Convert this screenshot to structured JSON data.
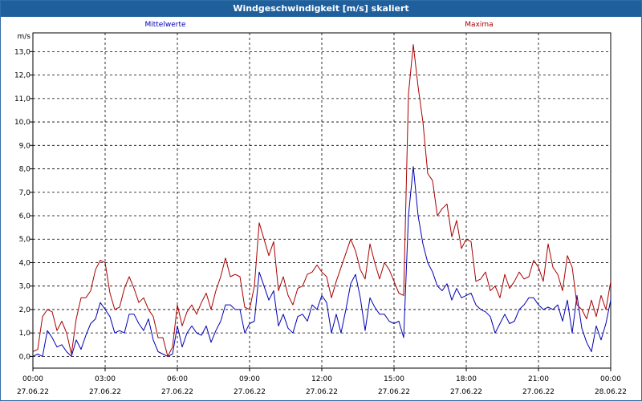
{
  "chart_data": {
    "type": "line",
    "title": "Windgeschwindigkeit [m/s] skaliert",
    "ylabel": "m/s",
    "ylim": [
      -0.5,
      13.8
    ],
    "yticks": [
      "0,0",
      "1,0",
      "2,0",
      "3,0",
      "4,0",
      "5,0",
      "6,0",
      "7,0",
      "8,0",
      "9,0",
      "10,0",
      "11,0",
      "12,0",
      "13,0"
    ],
    "xlim": [
      0,
      24
    ],
    "xticks": [
      {
        "time": "00:00",
        "date": "27.06.22"
      },
      {
        "time": "03:00",
        "date": "27.06.22"
      },
      {
        "time": "06:00",
        "date": "27.06.22"
      },
      {
        "time": "09:00",
        "date": "27.06.22"
      },
      {
        "time": "12:00",
        "date": "27.06.22"
      },
      {
        "time": "15:00",
        "date": "27.06.22"
      },
      {
        "time": "18:00",
        "date": "27.06.22"
      },
      {
        "time": "21:00",
        "date": "27.06.22"
      },
      {
        "time": "00:00",
        "date": "28.06.22"
      }
    ],
    "grid": true,
    "series": [
      {
        "name": "Mittelwerte",
        "color": "#0000b4",
        "points": [
          [
            0,
            0.0
          ],
          [
            0.2,
            0.1
          ],
          [
            0.4,
            0.0
          ],
          [
            0.6,
            1.1
          ],
          [
            0.8,
            0.8
          ],
          [
            1.0,
            0.4
          ],
          [
            1.2,
            0.5
          ],
          [
            1.4,
            0.2
          ],
          [
            1.6,
            0.0
          ],
          [
            1.8,
            0.7
          ],
          [
            2.0,
            0.3
          ],
          [
            2.2,
            0.9
          ],
          [
            2.4,
            1.4
          ],
          [
            2.6,
            1.6
          ],
          [
            2.8,
            2.3
          ],
          [
            3.0,
            2.0
          ],
          [
            3.2,
            1.7
          ],
          [
            3.4,
            1.0
          ],
          [
            3.6,
            1.1
          ],
          [
            3.8,
            1.0
          ],
          [
            4.0,
            1.8
          ],
          [
            4.2,
            1.8
          ],
          [
            4.4,
            1.4
          ],
          [
            4.6,
            1.1
          ],
          [
            4.8,
            1.6
          ],
          [
            5.0,
            0.7
          ],
          [
            5.2,
            0.2
          ],
          [
            5.4,
            0.1
          ],
          [
            5.6,
            0.0
          ],
          [
            5.8,
            0.1
          ],
          [
            6.0,
            1.3
          ],
          [
            6.2,
            0.4
          ],
          [
            6.4,
            1.0
          ],
          [
            6.6,
            1.3
          ],
          [
            6.8,
            1.0
          ],
          [
            7.0,
            0.9
          ],
          [
            7.2,
            1.3
          ],
          [
            7.4,
            0.6
          ],
          [
            7.6,
            1.1
          ],
          [
            7.8,
            1.5
          ],
          [
            8.0,
            2.2
          ],
          [
            8.2,
            2.2
          ],
          [
            8.4,
            2.0
          ],
          [
            8.6,
            2.0
          ],
          [
            8.8,
            1.0
          ],
          [
            9.0,
            1.4
          ],
          [
            9.2,
            1.5
          ],
          [
            9.4,
            3.6
          ],
          [
            9.6,
            3.0
          ],
          [
            9.8,
            2.4
          ],
          [
            10.0,
            2.8
          ],
          [
            10.2,
            1.3
          ],
          [
            10.4,
            1.8
          ],
          [
            10.6,
            1.2
          ],
          [
            10.8,
            1.0
          ],
          [
            11.0,
            1.7
          ],
          [
            11.2,
            1.8
          ],
          [
            11.4,
            1.5
          ],
          [
            11.6,
            2.2
          ],
          [
            11.8,
            2.0
          ],
          [
            12.0,
            2.6
          ],
          [
            12.2,
            2.3
          ],
          [
            12.4,
            1.0
          ],
          [
            12.6,
            1.8
          ],
          [
            12.8,
            1.0
          ],
          [
            13.0,
            2.0
          ],
          [
            13.2,
            3.1
          ],
          [
            13.4,
            3.5
          ],
          [
            13.6,
            2.5
          ],
          [
            13.8,
            1.1
          ],
          [
            14.0,
            2.5
          ],
          [
            14.2,
            2.1
          ],
          [
            14.4,
            1.8
          ],
          [
            14.6,
            1.8
          ],
          [
            14.8,
            1.5
          ],
          [
            15.0,
            1.4
          ],
          [
            15.2,
            1.5
          ],
          [
            15.4,
            0.8
          ],
          [
            15.6,
            6.0
          ],
          [
            15.8,
            8.1
          ],
          [
            16.0,
            6.0
          ],
          [
            16.2,
            4.8
          ],
          [
            16.4,
            4.0
          ],
          [
            16.6,
            3.6
          ],
          [
            16.8,
            3.0
          ],
          [
            17.0,
            2.8
          ],
          [
            17.2,
            3.1
          ],
          [
            17.4,
            2.4
          ],
          [
            17.6,
            2.9
          ],
          [
            17.8,
            2.5
          ],
          [
            18.0,
            2.6
          ],
          [
            18.2,
            2.7
          ],
          [
            18.4,
            2.2
          ],
          [
            18.6,
            2.0
          ],
          [
            18.8,
            1.9
          ],
          [
            19.0,
            1.7
          ],
          [
            19.2,
            1.0
          ],
          [
            19.4,
            1.4
          ],
          [
            19.6,
            1.8
          ],
          [
            19.8,
            1.4
          ],
          [
            20.0,
            1.5
          ],
          [
            20.2,
            2.0
          ],
          [
            20.4,
            2.2
          ],
          [
            20.6,
            2.5
          ],
          [
            20.8,
            2.5
          ],
          [
            21.0,
            2.2
          ],
          [
            21.2,
            2.0
          ],
          [
            21.4,
            2.1
          ],
          [
            21.6,
            2.0
          ],
          [
            21.8,
            2.2
          ],
          [
            22.0,
            1.5
          ],
          [
            22.2,
            2.4
          ],
          [
            22.4,
            1.0
          ],
          [
            22.6,
            2.6
          ],
          [
            22.8,
            1.2
          ],
          [
            23.0,
            0.6
          ],
          [
            23.2,
            0.2
          ],
          [
            23.4,
            1.3
          ],
          [
            23.6,
            0.7
          ],
          [
            23.8,
            1.4
          ],
          [
            24.0,
            2.4
          ]
        ]
      },
      {
        "name": "Maxima",
        "color": "#aa0000",
        "points": [
          [
            0,
            0.2
          ],
          [
            0.2,
            0.3
          ],
          [
            0.4,
            1.7
          ],
          [
            0.6,
            2.0
          ],
          [
            0.8,
            1.9
          ],
          [
            1.0,
            1.1
          ],
          [
            1.2,
            1.5
          ],
          [
            1.4,
            1.0
          ],
          [
            1.6,
            0.1
          ],
          [
            1.8,
            1.6
          ],
          [
            2.0,
            2.5
          ],
          [
            2.2,
            2.5
          ],
          [
            2.4,
            2.8
          ],
          [
            2.6,
            3.7
          ],
          [
            2.8,
            4.1
          ],
          [
            3.0,
            4.0
          ],
          [
            3.2,
            2.7
          ],
          [
            3.4,
            2.0
          ],
          [
            3.6,
            2.1
          ],
          [
            3.8,
            2.9
          ],
          [
            4.0,
            3.4
          ],
          [
            4.2,
            2.9
          ],
          [
            4.4,
            2.3
          ],
          [
            4.6,
            2.5
          ],
          [
            4.8,
            2.0
          ],
          [
            5.0,
            1.7
          ],
          [
            5.2,
            0.8
          ],
          [
            5.4,
            0.8
          ],
          [
            5.6,
            0.0
          ],
          [
            5.8,
            0.4
          ],
          [
            6.0,
            2.2
          ],
          [
            6.2,
            1.3
          ],
          [
            6.4,
            1.9
          ],
          [
            6.6,
            2.2
          ],
          [
            6.8,
            1.8
          ],
          [
            7.0,
            2.3
          ],
          [
            7.2,
            2.7
          ],
          [
            7.4,
            2.0
          ],
          [
            7.6,
            2.8
          ],
          [
            7.8,
            3.4
          ],
          [
            8.0,
            4.2
          ],
          [
            8.2,
            3.4
          ],
          [
            8.4,
            3.5
          ],
          [
            8.6,
            3.4
          ],
          [
            8.8,
            2.1
          ],
          [
            9.0,
            2.0
          ],
          [
            9.2,
            3.0
          ],
          [
            9.4,
            5.7
          ],
          [
            9.6,
            5.0
          ],
          [
            9.8,
            4.3
          ],
          [
            10.0,
            4.9
          ],
          [
            10.2,
            2.8
          ],
          [
            10.4,
            3.4
          ],
          [
            10.6,
            2.6
          ],
          [
            10.8,
            2.2
          ],
          [
            11.0,
            2.9
          ],
          [
            11.2,
            3.0
          ],
          [
            11.4,
            3.5
          ],
          [
            11.6,
            3.6
          ],
          [
            11.8,
            3.9
          ],
          [
            12.0,
            3.6
          ],
          [
            12.2,
            3.4
          ],
          [
            12.4,
            2.5
          ],
          [
            12.6,
            3.2
          ],
          [
            12.8,
            3.8
          ],
          [
            13.0,
            4.4
          ],
          [
            13.2,
            5.0
          ],
          [
            13.4,
            4.5
          ],
          [
            13.6,
            3.7
          ],
          [
            13.8,
            3.3
          ],
          [
            14.0,
            4.8
          ],
          [
            14.2,
            4.0
          ],
          [
            14.4,
            3.3
          ],
          [
            14.6,
            4.0
          ],
          [
            14.8,
            3.7
          ],
          [
            15.0,
            3.2
          ],
          [
            15.2,
            2.7
          ],
          [
            15.4,
            2.6
          ],
          [
            15.6,
            11.2
          ],
          [
            15.8,
            13.3
          ],
          [
            16.0,
            11.5
          ],
          [
            16.2,
            10.0
          ],
          [
            16.4,
            7.8
          ],
          [
            16.6,
            7.5
          ],
          [
            16.8,
            6.0
          ],
          [
            17.0,
            6.3
          ],
          [
            17.2,
            6.5
          ],
          [
            17.4,
            5.1
          ],
          [
            17.6,
            5.8
          ],
          [
            17.8,
            4.6
          ],
          [
            18.0,
            5.0
          ],
          [
            18.2,
            4.9
          ],
          [
            18.4,
            3.2
          ],
          [
            18.6,
            3.3
          ],
          [
            18.8,
            3.6
          ],
          [
            19.0,
            2.8
          ],
          [
            19.2,
            3.0
          ],
          [
            19.4,
            2.5
          ],
          [
            19.6,
            3.5
          ],
          [
            19.8,
            2.9
          ],
          [
            20.0,
            3.2
          ],
          [
            20.2,
            3.6
          ],
          [
            20.4,
            3.3
          ],
          [
            20.6,
            3.4
          ],
          [
            20.8,
            4.1
          ],
          [
            21.0,
            3.8
          ],
          [
            21.2,
            3.2
          ],
          [
            21.4,
            4.8
          ],
          [
            21.6,
            3.8
          ],
          [
            21.8,
            3.5
          ],
          [
            22.0,
            2.8
          ],
          [
            22.2,
            4.3
          ],
          [
            22.4,
            3.8
          ],
          [
            22.6,
            2.2
          ],
          [
            22.8,
            2.0
          ],
          [
            23.0,
            1.6
          ],
          [
            23.2,
            2.4
          ],
          [
            23.4,
            1.7
          ],
          [
            23.6,
            2.6
          ],
          [
            23.8,
            2.0
          ],
          [
            24.0,
            3.2
          ]
        ]
      }
    ]
  }
}
